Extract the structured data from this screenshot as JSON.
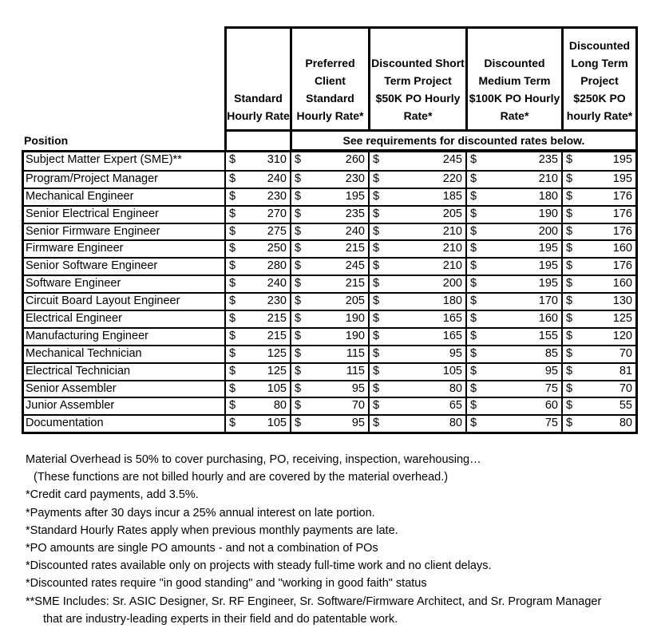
{
  "headers": {
    "position": "Position",
    "standard": "Standard Hourly Rate",
    "preferred": "Preferred Client Standard Hourly Rate*",
    "short_term": "Discounted Short Term Project $50K PO Hourly Rate*",
    "medium_term": "Discounted Medium Term $100K PO Hourly Rate*",
    "long_term": "Discounted Long Term Project $250K PO hourly Rate*",
    "see_requirements": "See requirements for discounted rates below."
  },
  "currency_symbol": "$",
  "rows": [
    {
      "position": "Subject Matter Expert (SME)**",
      "rates": [
        310,
        260,
        245,
        235,
        195
      ]
    },
    {
      "position": "Program/Project Manager",
      "rates": [
        240,
        230,
        220,
        210,
        195
      ]
    },
    {
      "position": "Mechanical Engineer",
      "rates": [
        230,
        195,
        185,
        180,
        176
      ]
    },
    {
      "position": "Senior Electrical Engineer",
      "rates": [
        270,
        235,
        205,
        190,
        176
      ]
    },
    {
      "position": "Senior Firmware Engineer",
      "rates": [
        275,
        240,
        210,
        200,
        176
      ]
    },
    {
      "position": "Firmware Engineer",
      "rates": [
        250,
        215,
        210,
        195,
        160
      ]
    },
    {
      "position": "Senior Software Engineer",
      "rates": [
        280,
        245,
        210,
        195,
        176
      ]
    },
    {
      "position": "Software Engineer",
      "rates": [
        240,
        215,
        200,
        195,
        160
      ]
    },
    {
      "position": "Circuit Board Layout Engineer",
      "rates": [
        230,
        205,
        180,
        170,
        130
      ]
    },
    {
      "position": "Electrical Engineer",
      "rates": [
        215,
        190,
        165,
        160,
        125
      ]
    },
    {
      "position": "Manufacturing Engineer",
      "rates": [
        215,
        190,
        165,
        155,
        120
      ]
    },
    {
      "position": "Mechanical Technician",
      "rates": [
        125,
        115,
        95,
        85,
        70
      ]
    },
    {
      "position": "Electrical Technician",
      "rates": [
        125,
        115,
        105,
        95,
        81
      ]
    },
    {
      "position": "Senior Assembler",
      "rates": [
        105,
        95,
        80,
        75,
        70
      ]
    },
    {
      "position": "Junior Assembler",
      "rates": [
        80,
        70,
        65,
        60,
        55
      ]
    },
    {
      "position": "Documentation",
      "rates": [
        105,
        95,
        80,
        75,
        80
      ]
    }
  ],
  "notes": [
    {
      "text": "Material Overhead is 50% to cover purchasing, PO, receiving, inspection, warehousing…",
      "indent": 0
    },
    {
      "text": "(These functions are not billed hourly and are covered by the material overhead.)",
      "indent": 1
    },
    {
      "text": "*Credit card payments, add 3.5%.",
      "indent": 0
    },
    {
      "text": "*Payments after 30 days incur a 25% annual interest on late portion.",
      "indent": 0
    },
    {
      "text": "*Standard Hourly Rates apply when previous monthly payments are late.",
      "indent": 0
    },
    {
      "text": "*PO amounts are single PO amounts - and not a combination of POs",
      "indent": 0
    },
    {
      "text": "*Discounted rates available only on projects with steady full-time work and no client delays.",
      "indent": 0
    },
    {
      "text": "*Discounted rates require \"in good standing\" and \"working in good faith\" status",
      "indent": 0
    },
    {
      "text": "**SME Includes: Sr. ASIC Designer, Sr. RF Engineer, Sr. Software/Firmware Architect, and Sr. Program Manager",
      "indent": 0
    },
    {
      "text": "that are industry-leading experts in their field and do patentable work.",
      "indent": 2
    }
  ]
}
